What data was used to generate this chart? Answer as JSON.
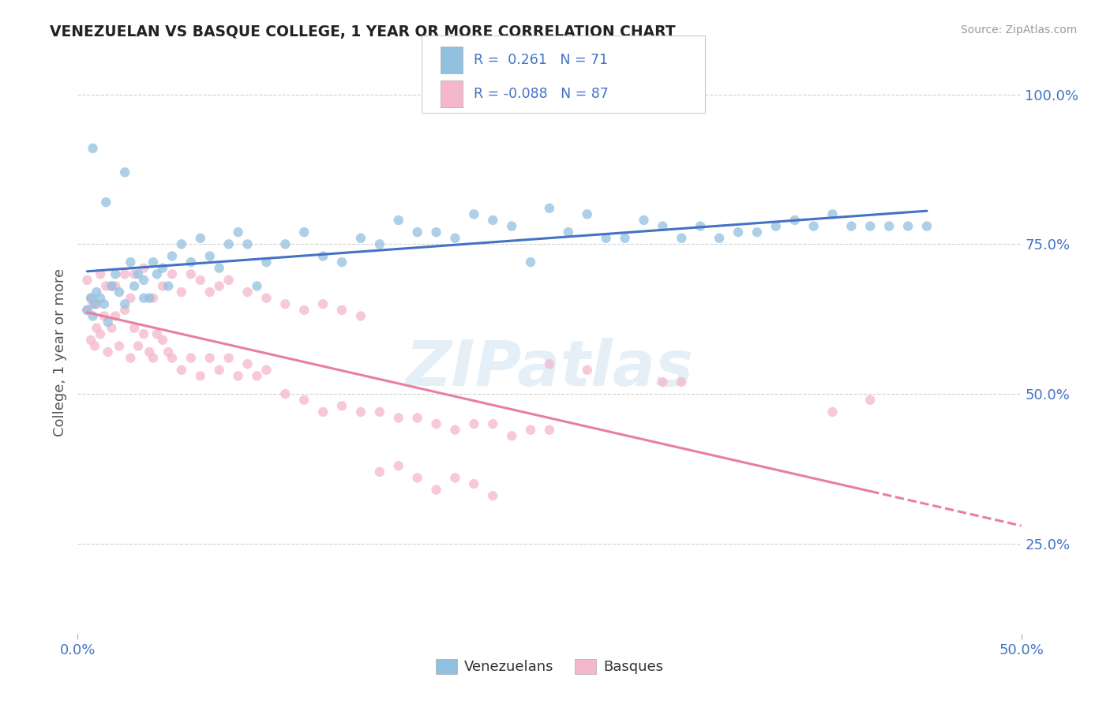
{
  "title": "VENEZUELAN VS BASQUE COLLEGE, 1 YEAR OR MORE CORRELATION CHART",
  "source": "Source: ZipAtlas.com",
  "ylabel": "College, 1 year or more",
  "xlim": [
    0.0,
    0.5
  ],
  "ylim": [
    0.1,
    1.04
  ],
  "yticks": [
    0.25,
    0.5,
    0.75,
    1.0
  ],
  "ytick_labels": [
    "25.0%",
    "50.0%",
    "75.0%",
    "100.0%"
  ],
  "color_blue": "#92c0e0",
  "color_pink": "#f5b8cb",
  "line_blue": "#4472c4",
  "line_pink": "#e87ea1",
  "watermark": "ZIPatlas",
  "venezuelan_x": [
    0.005,
    0.007,
    0.008,
    0.009,
    0.01,
    0.012,
    0.014,
    0.016,
    0.018,
    0.02,
    0.022,
    0.025,
    0.028,
    0.03,
    0.032,
    0.035,
    0.038,
    0.04,
    0.042,
    0.045,
    0.048,
    0.05,
    0.055,
    0.06,
    0.065,
    0.07,
    0.075,
    0.08,
    0.085,
    0.09,
    0.095,
    0.1,
    0.11,
    0.12,
    0.13,
    0.14,
    0.15,
    0.16,
    0.17,
    0.18,
    0.19,
    0.2,
    0.21,
    0.22,
    0.23,
    0.24,
    0.25,
    0.26,
    0.27,
    0.28,
    0.29,
    0.3,
    0.31,
    0.32,
    0.33,
    0.34,
    0.35,
    0.36,
    0.37,
    0.38,
    0.39,
    0.4,
    0.41,
    0.42,
    0.43,
    0.44,
    0.45,
    0.008,
    0.015,
    0.025,
    0.035
  ],
  "venezuelan_y": [
    0.64,
    0.66,
    0.63,
    0.65,
    0.67,
    0.66,
    0.65,
    0.62,
    0.68,
    0.7,
    0.67,
    0.65,
    0.72,
    0.68,
    0.7,
    0.69,
    0.66,
    0.72,
    0.7,
    0.71,
    0.68,
    0.73,
    0.75,
    0.72,
    0.76,
    0.73,
    0.71,
    0.75,
    0.77,
    0.75,
    0.68,
    0.72,
    0.75,
    0.77,
    0.73,
    0.72,
    0.76,
    0.75,
    0.79,
    0.77,
    0.77,
    0.76,
    0.8,
    0.79,
    0.78,
    0.72,
    0.81,
    0.77,
    0.8,
    0.76,
    0.76,
    0.79,
    0.78,
    0.76,
    0.78,
    0.76,
    0.77,
    0.77,
    0.78,
    0.79,
    0.78,
    0.8,
    0.78,
    0.78,
    0.78,
    0.78,
    0.78,
    0.91,
    0.82,
    0.87,
    0.66
  ],
  "basque_x": [
    0.005,
    0.007,
    0.008,
    0.009,
    0.01,
    0.012,
    0.014,
    0.016,
    0.018,
    0.02,
    0.022,
    0.025,
    0.028,
    0.03,
    0.032,
    0.035,
    0.038,
    0.04,
    0.042,
    0.045,
    0.048,
    0.05,
    0.055,
    0.06,
    0.065,
    0.07,
    0.075,
    0.08,
    0.085,
    0.09,
    0.095,
    0.1,
    0.11,
    0.12,
    0.13,
    0.14,
    0.15,
    0.16,
    0.17,
    0.18,
    0.19,
    0.2,
    0.21,
    0.22,
    0.23,
    0.24,
    0.25,
    0.005,
    0.007,
    0.01,
    0.012,
    0.015,
    0.018,
    0.02,
    0.025,
    0.028,
    0.03,
    0.035,
    0.04,
    0.045,
    0.05,
    0.055,
    0.06,
    0.065,
    0.07,
    0.075,
    0.08,
    0.09,
    0.1,
    0.11,
    0.12,
    0.13,
    0.14,
    0.15,
    0.25,
    0.27,
    0.31,
    0.32,
    0.4,
    0.42,
    0.16,
    0.17,
    0.18,
    0.19,
    0.2,
    0.21,
    0.22
  ],
  "basque_y": [
    0.64,
    0.59,
    0.65,
    0.58,
    0.61,
    0.6,
    0.63,
    0.57,
    0.61,
    0.63,
    0.58,
    0.64,
    0.56,
    0.61,
    0.58,
    0.6,
    0.57,
    0.56,
    0.6,
    0.59,
    0.57,
    0.56,
    0.54,
    0.56,
    0.53,
    0.56,
    0.54,
    0.56,
    0.53,
    0.55,
    0.53,
    0.54,
    0.5,
    0.49,
    0.47,
    0.48,
    0.47,
    0.47,
    0.46,
    0.46,
    0.45,
    0.44,
    0.45,
    0.45,
    0.43,
    0.44,
    0.44,
    0.69,
    0.66,
    0.65,
    0.7,
    0.68,
    0.68,
    0.68,
    0.7,
    0.66,
    0.7,
    0.71,
    0.66,
    0.68,
    0.7,
    0.67,
    0.7,
    0.69,
    0.67,
    0.68,
    0.69,
    0.67,
    0.66,
    0.65,
    0.64,
    0.65,
    0.64,
    0.63,
    0.55,
    0.54,
    0.52,
    0.52,
    0.47,
    0.49,
    0.37,
    0.38,
    0.36,
    0.34,
    0.36,
    0.35,
    0.33
  ]
}
